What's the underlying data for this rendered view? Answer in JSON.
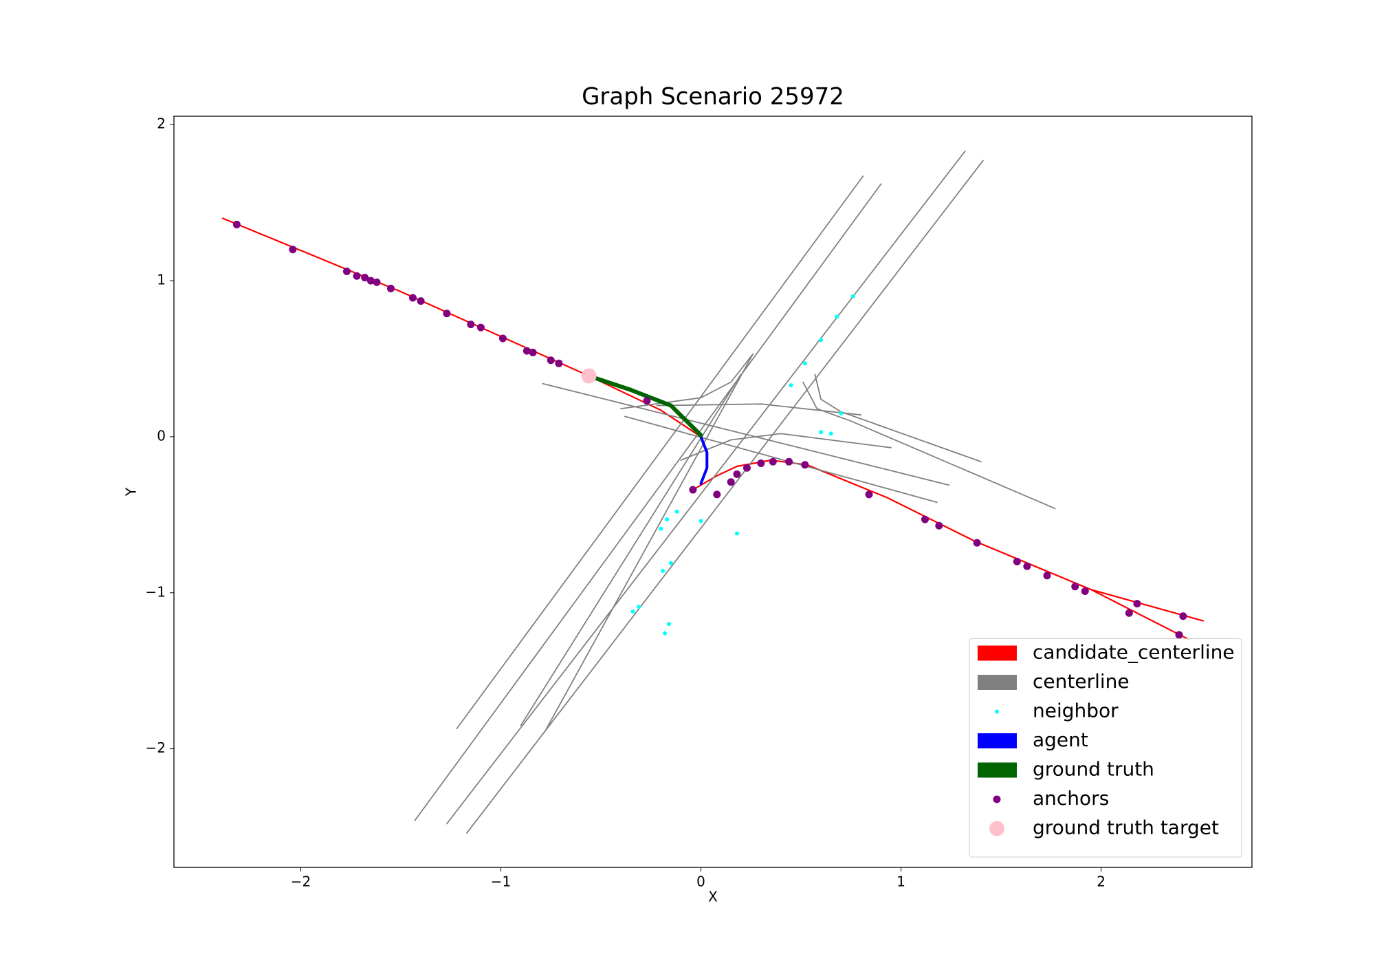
{
  "chart_data": {
    "type": "scatter",
    "title": "Graph Scenario 25972",
    "x_label": "X",
    "y_label": "Y",
    "xlim": [
      -2.634,
      2.754
    ],
    "ylim": [
      -2.76,
      2.054
    ],
    "xticks": [
      {
        "value": -2,
        "label": "−2"
      },
      {
        "value": -1,
        "label": "−1"
      },
      0,
      1,
      2
    ],
    "yticks": [
      {
        "value": -2,
        "label": "−2"
      },
      {
        "value": -1,
        "label": "−1"
      },
      0,
      1,
      2
    ],
    "legend": "lower right",
    "series": [
      {
        "name": "candidate_centerline",
        "color": "red",
        "mode": "line",
        "x": [
          -2.39,
          -1.5,
          -0.56,
          -0.2,
          0.0,
          null,
          -0.04,
          0.08,
          0.18,
          0.35,
          0.53,
          0.93,
          1.37,
          1.95,
          2.51,
          null,
          1.95,
          2.44
        ],
        "values": [
          1.4,
          0.93,
          0.39,
          0.17,
          0.0,
          null,
          -0.34,
          -0.25,
          -0.19,
          -0.15,
          -0.18,
          -0.39,
          -0.67,
          -0.98,
          -1.18,
          null,
          -0.98,
          -1.3
        ]
      },
      {
        "name": "centerline",
        "color": "gray",
        "mode": "line",
        "x": [
          -1.22,
          0.81,
          null,
          -1.43,
          0.9,
          null,
          -1.27,
          1.32,
          null,
          -1.17,
          1.41,
          null,
          -0.78,
          0.26,
          null,
          -0.9,
          0.2,
          null,
          -0.79,
          1.24,
          null,
          -0.38,
          1.18,
          null,
          -0.22,
          0.3,
          0.8,
          null,
          0.51,
          0.58,
          0.75,
          1.77,
          null,
          0.57,
          0.6,
          0.7,
          1.4,
          null,
          -0.4,
          0.0,
          0.15,
          0.26,
          null,
          -0.1,
          0.15,
          0.4,
          0.95
        ],
        "values": [
          -1.87,
          1.67,
          null,
          -2.46,
          1.62,
          null,
          -2.48,
          1.83,
          null,
          -2.54,
          1.77,
          null,
          -1.89,
          0.53,
          null,
          -1.85,
          0.4,
          null,
          0.34,
          -0.31,
          null,
          0.13,
          -0.42,
          null,
          0.2,
          0.21,
          0.14,
          null,
          0.35,
          0.18,
          0.1,
          -0.46,
          null,
          0.4,
          0.24,
          0.16,
          -0.16,
          null,
          0.18,
          0.25,
          0.35,
          0.53,
          null,
          -0.15,
          -0.02,
          0.02,
          -0.07
        ]
      },
      {
        "name": "neighbor",
        "color": "cyan",
        "mode": "points",
        "size": 3,
        "x": [
          0.45,
          0.52,
          0.6,
          0.68,
          0.76,
          0.7,
          0.6,
          0.65,
          -0.2,
          -0.17,
          -0.12,
          -0.15,
          -0.19,
          -0.34,
          -0.31,
          -0.18,
          -0.16,
          0.0,
          0.18
        ],
        "values": [
          0.33,
          0.47,
          0.62,
          0.77,
          0.9,
          0.15,
          0.03,
          0.02,
          -0.59,
          -0.53,
          -0.48,
          -0.81,
          -0.86,
          -1.12,
          -1.09,
          -1.26,
          -1.2,
          -0.54,
          -0.62
        ]
      },
      {
        "name": "agent",
        "color": "blue",
        "mode": "line",
        "x": [
          0.0,
          0.03,
          0.03,
          0.0
        ],
        "values": [
          0.0,
          -0.1,
          -0.2,
          -0.3
        ]
      },
      {
        "name": "ground truth",
        "color": "#006400",
        "mode": "line",
        "x": [
          -0.56,
          -0.35,
          -0.15,
          0.0
        ],
        "values": [
          0.39,
          0.3,
          0.2,
          0.01
        ]
      },
      {
        "name": "anchors",
        "color": "purple",
        "mode": "points",
        "size": 5.5,
        "x": [
          -2.32,
          -2.04,
          -1.77,
          -1.72,
          -1.68,
          -1.65,
          -1.62,
          -1.55,
          -1.44,
          -1.4,
          -1.27,
          -1.15,
          -1.1,
          -0.99,
          -0.87,
          -0.84,
          -0.75,
          -0.71,
          -0.27,
          -0.04,
          0.08,
          0.15,
          0.18,
          0.23,
          0.3,
          0.36,
          0.44,
          0.52,
          0.84,
          1.12,
          1.19,
          1.38,
          1.58,
          1.63,
          1.73,
          1.87,
          1.92,
          2.18,
          2.41,
          2.14,
          2.39
        ],
        "values": [
          1.36,
          1.2,
          1.06,
          1.03,
          1.02,
          1.0,
          0.99,
          0.95,
          0.89,
          0.87,
          0.79,
          0.72,
          0.7,
          0.63,
          0.55,
          0.54,
          0.49,
          0.47,
          0.23,
          -0.34,
          -0.37,
          -0.29,
          -0.24,
          -0.2,
          -0.17,
          -0.16,
          -0.16,
          -0.18,
          -0.37,
          -0.53,
          -0.57,
          -0.68,
          -0.8,
          -0.83,
          -0.89,
          -0.96,
          -0.99,
          -1.07,
          -1.15,
          -1.13,
          -1.27
        ]
      },
      {
        "name": "ground truth target",
        "color": "pink",
        "mode": "points",
        "size": 11,
        "x": [
          -0.56
        ],
        "values": [
          0.39
        ]
      }
    ]
  }
}
